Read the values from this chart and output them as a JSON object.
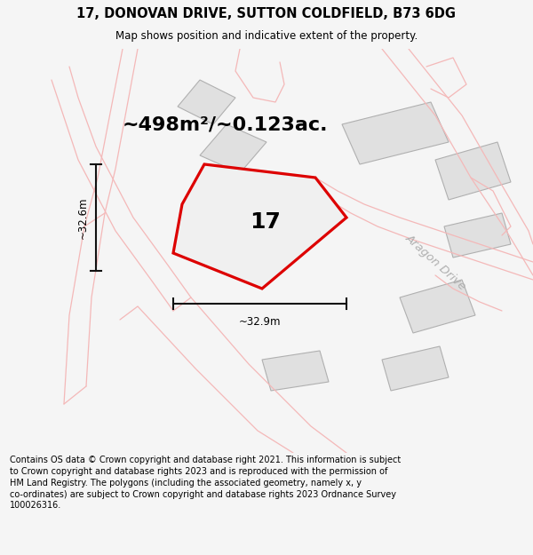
{
  "title_line1": "17, DONOVAN DRIVE, SUTTON COLDFIELD, B73 6DG",
  "title_line2": "Map shows position and indicative extent of the property.",
  "footer_text": "Contains OS data © Crown copyright and database right 2021. This information is subject\nto Crown copyright and database rights 2023 and is reproduced with the permission of\nHM Land Registry. The polygons (including the associated geometry, namely x, y\nco-ordinates) are subject to Crown copyright and database rights 2023 Ordnance Survey\n100026316.",
  "area_label": "~498m²/~0.123ac.",
  "number_label": "17",
  "dim_width": "~32.9m",
  "dim_height": "~32.6m",
  "road_label": "Aragon Drive",
  "bg_color": "#f5f5f5",
  "map_bg": "#ffffff",
  "bld_fill": "#e0e0e0",
  "bld_edge": "#b0b0b0",
  "pink": "#f4b8b8",
  "main_fill": "#f0f0f0",
  "main_edge": "#dd0000",
  "dim_color": "#111111",
  "road_text_color": "#b0b0b0",
  "title_fs": 10.5,
  "sub_fs": 8.5,
  "area_fs": 16,
  "num_fs": 18,
  "footer_fs": 7.0,
  "road_fs": 9.5
}
